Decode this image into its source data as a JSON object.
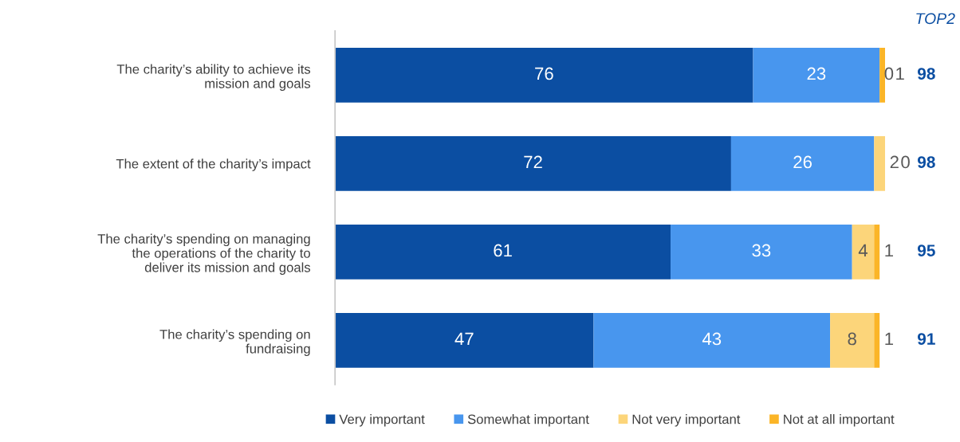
{
  "chart_data": {
    "type": "bar",
    "orientation": "horizontal",
    "stacked": true,
    "categories": [
      "The charity’s ability to achieve its\nmission and goals",
      "The extent of the charity’s impact",
      "The charity’s spending on managing\nthe operations of the charity to\ndeliver its mission and goals",
      "The charity’s spending on\nfundraising"
    ],
    "series": [
      {
        "name": "Very important",
        "color": "#0b4ea2",
        "values": [
          76,
          72,
          61,
          47
        ]
      },
      {
        "name": "Somewhat important",
        "color": "#4896ee",
        "values": [
          23,
          26,
          33,
          43
        ]
      },
      {
        "name": "Not very important",
        "color": "#fcd57a",
        "values": [
          0,
          2,
          4,
          8
        ]
      },
      {
        "name": "Not at all important",
        "color": "#fbb527",
        "values": [
          1,
          0,
          1,
          1
        ]
      }
    ],
    "data_labels": true,
    "annotations": [
      "TOP2",
      "98",
      "98",
      "95",
      "91"
    ],
    "legend": "bottom",
    "grid": false
  }
}
